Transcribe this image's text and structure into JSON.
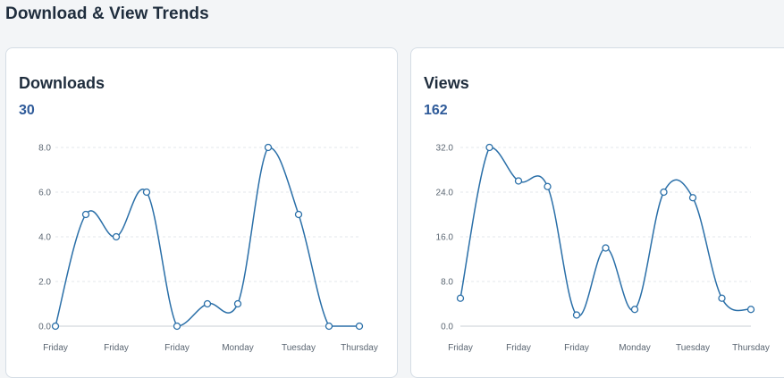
{
  "page": {
    "title": "Download & View Trends"
  },
  "cards": [
    {
      "title": "Downloads",
      "total": "30"
    },
    {
      "title": "Views",
      "total": "162"
    }
  ],
  "colors": {
    "line": "#2a6fa8",
    "point_fill": "#ffffff",
    "grid": "#e3e7eb",
    "baseline": "#c9cfd6"
  },
  "chart_data": [
    {
      "type": "line",
      "title": "Downloads",
      "x_tick_labels": [
        "Friday",
        "Friday",
        "Friday",
        "Monday",
        "Tuesday",
        "Thursday"
      ],
      "y_tick_labels": [
        "0.0",
        "2.0",
        "4.0",
        "6.0",
        "8.0"
      ],
      "ylim": [
        0,
        8
      ],
      "values": [
        0,
        5,
        4,
        6,
        0,
        1,
        1,
        8,
        5,
        0,
        0
      ],
      "grid": true,
      "smooth": true
    },
    {
      "type": "line",
      "title": "Views",
      "x_tick_labels": [
        "Friday",
        "Friday",
        "Friday",
        "Monday",
        "Tuesday",
        "Thursday"
      ],
      "y_tick_labels": [
        "0.0",
        "8.0",
        "16.0",
        "24.0",
        "32.0"
      ],
      "ylim": [
        0,
        32
      ],
      "values": [
        5,
        32,
        26,
        25,
        2,
        14,
        3,
        24,
        23,
        5,
        3
      ],
      "grid": true,
      "smooth": true
    }
  ]
}
